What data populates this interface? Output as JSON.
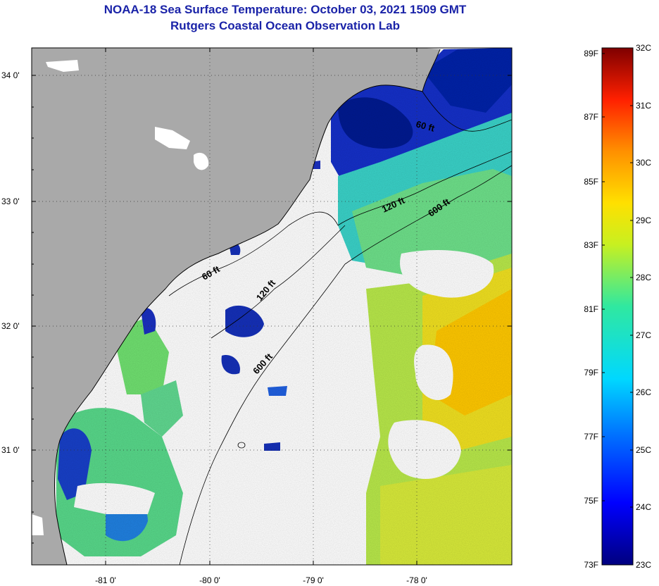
{
  "header": {
    "title": "NOAA-18 Sea Surface Temperature:  October 03, 2021 1509 GMT",
    "subtitle": "Rutgers Coastal Ocean Observation Lab"
  },
  "map": {
    "lon_labels": [
      "-81 0'",
      "-80 0'",
      "-79 0'",
      "-78 0'"
    ],
    "lat_labels": [
      "34 0'",
      "33 0'",
      "32 0'",
      "31 0'"
    ],
    "contours": [
      {
        "label": "60 ft"
      },
      {
        "label": "120 ft"
      },
      {
        "label": "600 ft"
      },
      {
        "label": "60 ft"
      },
      {
        "label": "120 ft"
      },
      {
        "label": "600 ft"
      }
    ]
  },
  "colorbar": {
    "fahrenheit": [
      "89F",
      "87F",
      "85F",
      "83F",
      "81F",
      "79F",
      "77F",
      "75F",
      "73F"
    ],
    "celsius": [
      "32C",
      "31C",
      "30C",
      "29C",
      "28C",
      "27C",
      "26C",
      "25C",
      "24C",
      "23C"
    ]
  },
  "colors": {
    "land": "#a9a9a9",
    "title": "#1a23a8"
  }
}
